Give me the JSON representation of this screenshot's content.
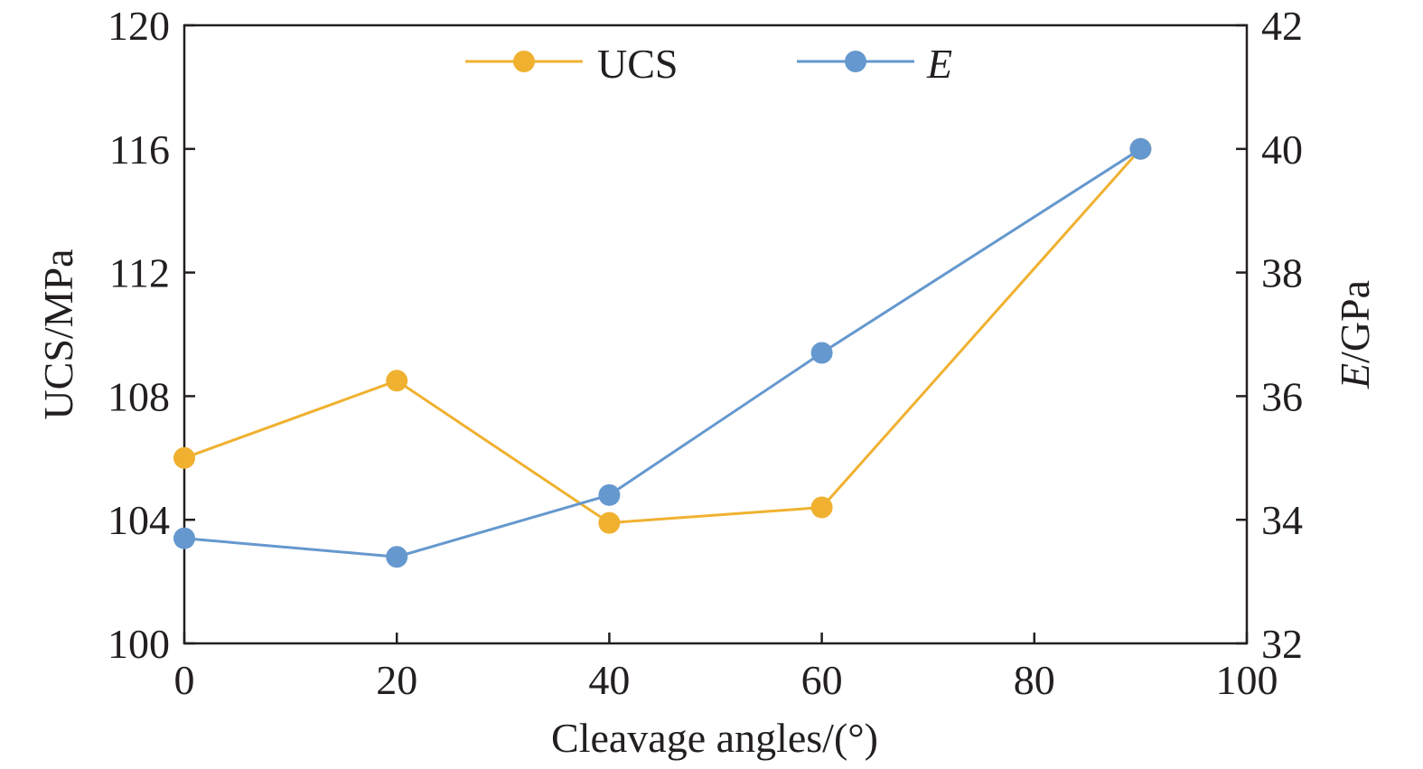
{
  "chart_data": {
    "type": "line",
    "title": "",
    "xlabel": "Cleavage angles/(°)",
    "ylabel_left": "UCS/MPa",
    "ylabel_right_symbol": "E",
    "ylabel_right_unit": "/GPa",
    "xlim": [
      0,
      100
    ],
    "x_ticks": [
      0,
      20,
      40,
      60,
      80,
      100
    ],
    "ylim_left": [
      100,
      120
    ],
    "y_ticks_left": [
      100,
      104,
      108,
      112,
      116,
      120
    ],
    "ylim_right": [
      32,
      42
    ],
    "y_ticks_right": [
      32,
      34,
      36,
      38,
      40,
      42
    ],
    "grid": false,
    "legend_position": "top-center",
    "series": [
      {
        "name": "UCS",
        "axis": "left",
        "color": "#f0b130",
        "x": [
          0,
          20,
          40,
          60,
          90
        ],
        "y": [
          106.0,
          108.5,
          103.9,
          104.4,
          116.0
        ]
      },
      {
        "name": "E",
        "axis": "right",
        "color": "#6598ce",
        "x": [
          0,
          20,
          40,
          60,
          90
        ],
        "y": [
          33.7,
          33.4,
          34.4,
          36.7,
          40.0
        ]
      }
    ]
  }
}
